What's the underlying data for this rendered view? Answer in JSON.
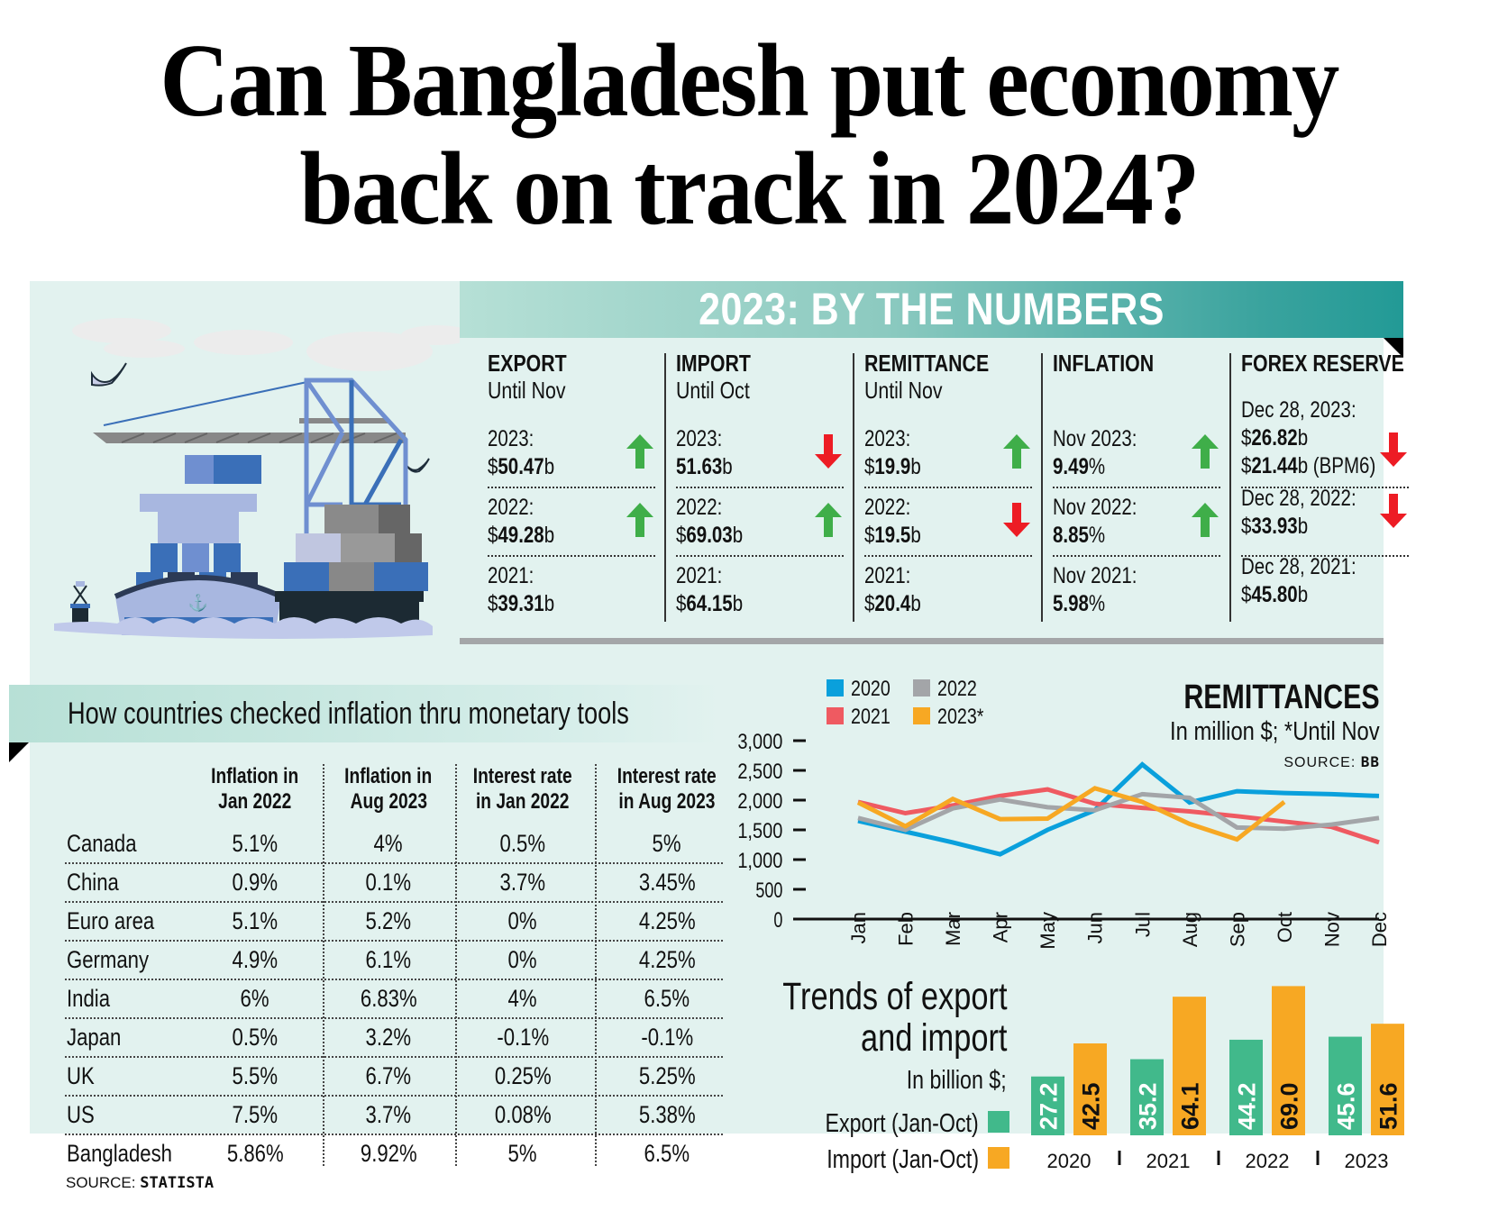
{
  "headline": {
    "line1": "Can Bangladesh put economy",
    "line2": "back on track in 2024?"
  },
  "by_the_numbers": {
    "title": "2023: BY THE NUMBERS",
    "columns": [
      {
        "title": "EXPORT",
        "subtitle": "Until Nov",
        "stats": [
          {
            "label": "2023:",
            "prefix": "$",
            "value": "50.47",
            "suffix": "b",
            "trend": "up"
          },
          {
            "label": "2022:",
            "prefix": "$",
            "value": "49.28",
            "suffix": "b",
            "trend": "up"
          },
          {
            "label": "2021:",
            "prefix": "$",
            "value": "39.31",
            "suffix": "b",
            "trend": "none"
          }
        ]
      },
      {
        "title": "IMPORT",
        "subtitle": "Until Oct",
        "stats": [
          {
            "label": "2023:",
            "prefix": "",
            "value": "51.63",
            "suffix": "b",
            "trend": "down"
          },
          {
            "label": "2022:",
            "prefix": "$",
            "value": "69.03",
            "suffix": "b",
            "trend": "up"
          },
          {
            "label": "2021:",
            "prefix": "$",
            "value": "64.15",
            "suffix": "b",
            "trend": "none"
          }
        ]
      },
      {
        "title": "REMITTANCE",
        "subtitle": "Until Nov",
        "stats": [
          {
            "label": "2023:",
            "prefix": "$",
            "value": "19.9",
            "suffix": "b",
            "trend": "up"
          },
          {
            "label": "2022:",
            "prefix": "$",
            "value": "19.5",
            "suffix": "b",
            "trend": "down"
          },
          {
            "label": "2021:",
            "prefix": "$",
            "value": "20.4",
            "suffix": "b",
            "trend": "none"
          }
        ]
      },
      {
        "title": "INFLATION",
        "subtitle": "",
        "stats": [
          {
            "label": "Nov 2023:",
            "prefix": "",
            "value": "9.49",
            "suffix": "%",
            "trend": "up"
          },
          {
            "label": "Nov 2022:",
            "prefix": "",
            "value": "8.85",
            "suffix": "%",
            "trend": "up"
          },
          {
            "label": "Nov 2021:",
            "prefix": "",
            "value": "5.98",
            "suffix": "%",
            "trend": "none"
          }
        ]
      },
      {
        "title": "FOREX RESERVE",
        "subtitle": "",
        "stats": [
          {
            "label": "Dec 28, 2023:",
            "prefix": "$",
            "value": "26.82",
            "suffix": "b",
            "extra_prefix": "$",
            "extra_value": "21.44",
            "extra_suffix": "b (BPM6)",
            "trend": "down"
          },
          {
            "label": "Dec 28, 2022:",
            "prefix": "$",
            "value": "33.93",
            "suffix": "b",
            "trend": "down"
          },
          {
            "label": "Dec 28, 2021:",
            "prefix": "$",
            "value": "45.80",
            "suffix": "b",
            "trend": "none"
          }
        ]
      }
    ],
    "colors": {
      "up": "#3fae49",
      "down": "#ed1c24"
    }
  },
  "inflation_table": {
    "title": "How countries checked inflation thru monetary tools",
    "headers": [
      [
        "Inflation in",
        "Jan 2022"
      ],
      [
        "Inflation in",
        "Aug 2023"
      ],
      [
        "Interest rate",
        "in Jan 2022"
      ],
      [
        "Interest rate",
        "in Aug 2023"
      ]
    ],
    "rows": [
      {
        "country": "Canada",
        "values": [
          "5.1%",
          "4%",
          "0.5%",
          "5%"
        ]
      },
      {
        "country": "China",
        "values": [
          "0.9%",
          "0.1%",
          "3.7%",
          "3.45%"
        ]
      },
      {
        "country": "Euro area",
        "values": [
          "5.1%",
          "5.2%",
          "0%",
          "4.25%"
        ]
      },
      {
        "country": "Germany",
        "values": [
          "4.9%",
          "6.1%",
          "0%",
          "4.25%"
        ]
      },
      {
        "country": "India",
        "values": [
          "6%",
          "6.83%",
          "4%",
          "6.5%"
        ]
      },
      {
        "country": "Japan",
        "values": [
          "0.5%",
          "3.2%",
          "-0.1%",
          "-0.1%"
        ]
      },
      {
        "country": "UK",
        "values": [
          "5.5%",
          "6.7%",
          "0.25%",
          "5.25%"
        ]
      },
      {
        "country": "US",
        "values": [
          "7.5%",
          "3.7%",
          "0.08%",
          "5.38%"
        ]
      },
      {
        "country": "Bangladesh",
        "values": [
          "5.86%",
          "9.92%",
          "5%",
          "6.5%"
        ]
      }
    ],
    "source_label": "SOURCE:",
    "source_name": "STATISTA"
  },
  "chart_data": [
    {
      "type": "line",
      "title": "REMITTANCES",
      "subtitle": "In million $; *Until Nov",
      "source_label": "SOURCE:",
      "source_name": "BB",
      "x": [
        "Jan",
        "Feb",
        "Mar",
        "Apr",
        "May",
        "Jun",
        "Jul",
        "Aug",
        "Sep",
        "Oct",
        "Nov",
        "Dec"
      ],
      "yticks": [
        0,
        500,
        1000,
        1500,
        2000,
        2500,
        3000
      ],
      "ytick_labels": [
        "0",
        "500",
        "1,000",
        "1,500",
        "2,000",
        "2,500",
        "3,000"
      ],
      "ylim": [
        0,
        3000
      ],
      "grid": false,
      "legend": "top-left",
      "series": [
        {
          "name": "2020",
          "color": "#0aa0dc",
          "values": [
            1650,
            1470,
            1290,
            1090,
            1500,
            1830,
            2600,
            1960,
            2150,
            2120,
            2100,
            2070
          ]
        },
        {
          "name": "2021",
          "color": "#ef5a61",
          "values": [
            1970,
            1780,
            1910,
            2070,
            2180,
            1940,
            1870,
            1810,
            1730,
            1640,
            1550,
            1290
          ]
        },
        {
          "name": "2022",
          "color": "#a3a5a8",
          "values": [
            1700,
            1500,
            1860,
            2010,
            1880,
            1830,
            2100,
            2040,
            1540,
            1520,
            1590,
            1700
          ]
        },
        {
          "name": "2023*",
          "color": "#f7a823",
          "values": [
            1960,
            1560,
            2020,
            1680,
            1690,
            2200,
            1970,
            1600,
            1340,
            1970,
            null,
            null
          ]
        }
      ]
    },
    {
      "type": "bar",
      "title": "Trends of export and import",
      "title_lines": [
        "Trends of export",
        "and import"
      ],
      "subtitle": "In billion $;",
      "categories": [
        "2020",
        "2021",
        "2022",
        "2023"
      ],
      "legend": "left",
      "series": [
        {
          "name": "Export (Jan-Oct)",
          "color": "#41b98b",
          "values": [
            27.2,
            35.2,
            44.2,
            45.6
          ],
          "labels": [
            "27.2",
            "35.2",
            "44.2",
            "45.6"
          ]
        },
        {
          "name": "Import (Jan-Oct)",
          "color": "#f7a823",
          "values": [
            42.5,
            64.1,
            69.0,
            51.6
          ],
          "labels": [
            "42.5",
            "64.1",
            "69.0",
            "51.6"
          ]
        }
      ]
    }
  ]
}
